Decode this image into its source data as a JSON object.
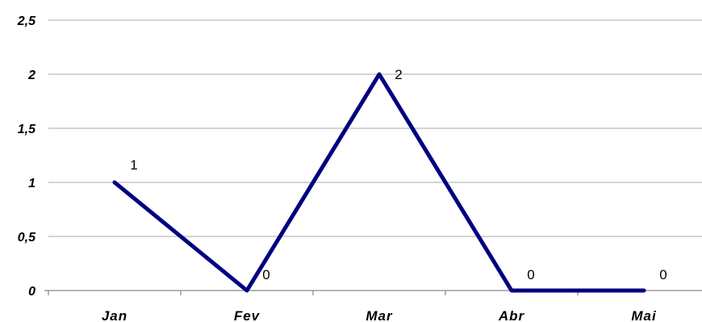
{
  "chart_data": {
    "type": "line",
    "categories": [
      "Jan",
      "Fev",
      "Mar",
      "Abr",
      "Mai"
    ],
    "series": [
      {
        "values": [
          1,
          0,
          2,
          0,
          0
        ],
        "color": "#000080"
      }
    ],
    "data_labels": [
      "1",
      "0",
      "2",
      "0",
      "0"
    ],
    "ylim": [
      0,
      2.5
    ],
    "yticks": [
      "0",
      "0,5",
      "1",
      "1,5",
      "2",
      "2,5"
    ],
    "title": "",
    "xlabel": "",
    "ylabel": "",
    "grid": true,
    "legend": "none"
  }
}
